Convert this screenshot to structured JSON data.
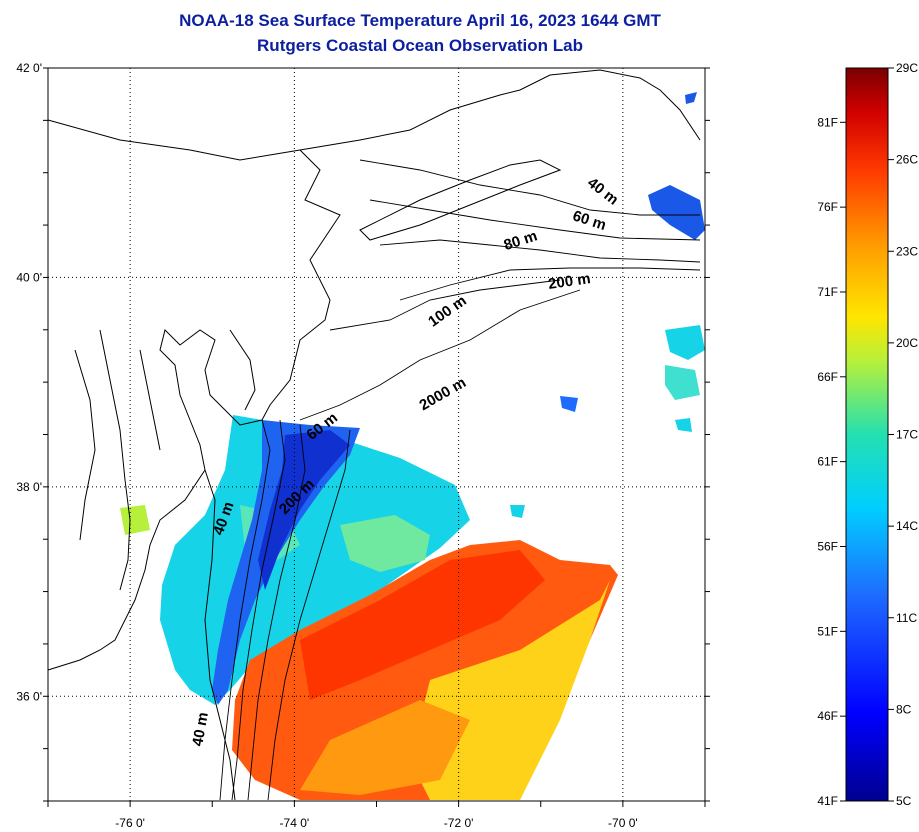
{
  "header": {
    "title": "NOAA-18 Sea Surface Temperature April 16, 2023 1644 GMT",
    "subtitle": "Rutgers Coastal Ocean Observation Lab"
  },
  "map": {
    "lon_range": [
      -77,
      -69
    ],
    "lat_range": [
      35,
      42
    ],
    "lat_labels": [
      {
        "lat": 42,
        "label": "42 0'"
      },
      {
        "lat": 40,
        "label": "40 0'"
      },
      {
        "lat": 38,
        "label": "38 0'"
      },
      {
        "lat": 36,
        "label": "36 0'"
      }
    ],
    "lon_labels": [
      {
        "lon": -76,
        "label": "-76 0'"
      },
      {
        "lon": -74,
        "label": "-74 0'"
      },
      {
        "lon": -72,
        "label": "-72 0'"
      },
      {
        "lon": -70,
        "label": "-70 0'"
      }
    ],
    "grid": true,
    "isobaths": [
      {
        "label": "40 m"
      },
      {
        "label": "60 m"
      },
      {
        "label": "80 m"
      },
      {
        "label": "200 m"
      },
      {
        "label": "100 m"
      },
      {
        "label": "2000 m"
      },
      {
        "label": "60 m"
      },
      {
        "label": "200 m"
      },
      {
        "label": "40 m"
      },
      {
        "label": "40 m"
      }
    ]
  },
  "colorbar": {
    "celsius_labels": [
      "29C",
      "26C",
      "23C",
      "20C",
      "17C",
      "14C",
      "11C",
      "8C",
      "5C"
    ],
    "fahrenheit_labels": [
      "81F",
      "76F",
      "71F",
      "66F",
      "61F",
      "56F",
      "51F",
      "46F",
      "41F"
    ],
    "min_c": 5,
    "max_c": 29
  },
  "colors": {
    "title": "#0b1fa0",
    "cold": "#00008f",
    "cool": "#1e6bff",
    "mid": "#00d4ff",
    "warm": "#ffe600",
    "hot": "#ff4a00",
    "max": "#7a0000"
  }
}
